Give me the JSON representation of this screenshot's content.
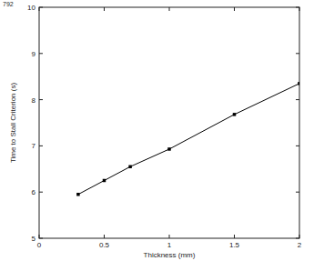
{
  "chart_data": {
    "type": "line",
    "annotations": [
      "792"
    ],
    "x_label": "Thickness (mm)",
    "y_label": "Time to Stall Criterion (s)",
    "x": [
      0.3,
      0.5,
      0.7,
      1.0,
      1.5,
      2.0
    ],
    "values": [
      5.95,
      6.25,
      6.55,
      6.93,
      7.68,
      8.35
    ],
    "color": "#000000",
    "marker": "square",
    "line_style": "solid",
    "grid": false,
    "xlim": [
      0,
      2
    ],
    "xticks": [
      0,
      0.5,
      1,
      1.5,
      2
    ],
    "ylim": [
      5,
      10
    ],
    "yticks": [
      5,
      6,
      7,
      8,
      9,
      10
    ]
  }
}
